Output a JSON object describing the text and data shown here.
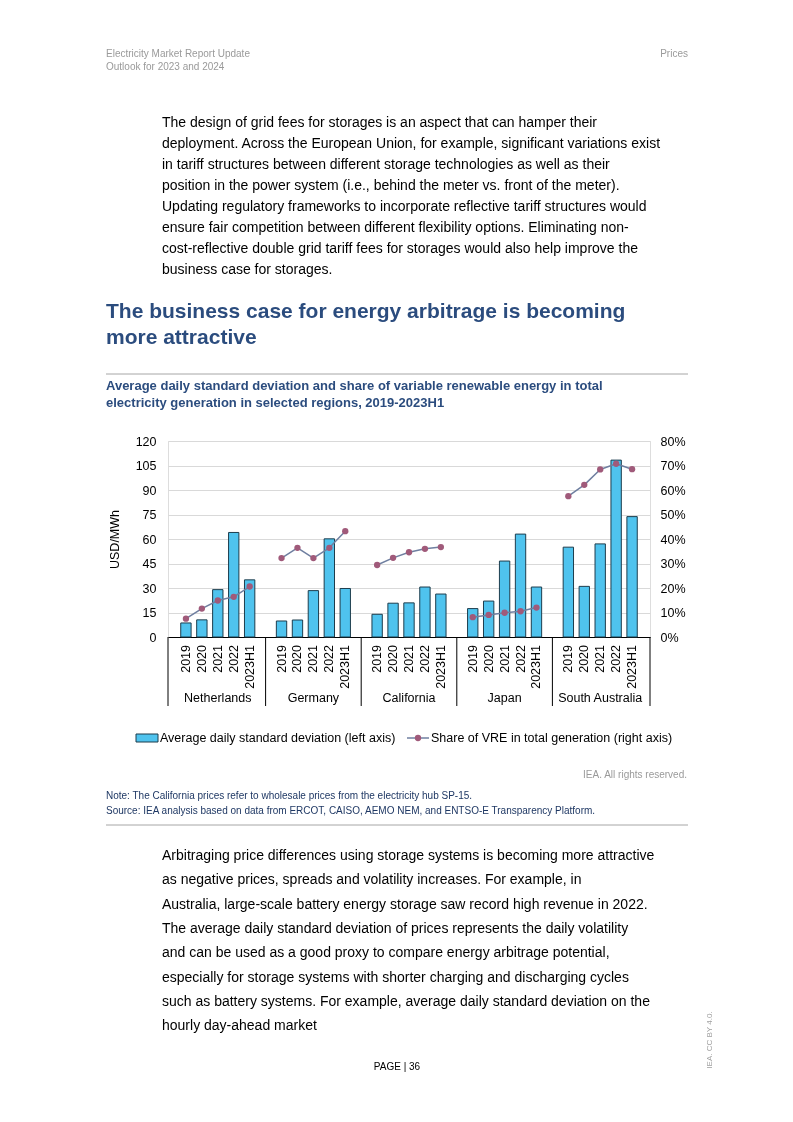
{
  "chart_data": {
    "type": "bar",
    "title": "Average daily standard deviation and share of variable renewable energy in total electricity generation in selected regions, 2019-2023H1",
    "ylabel": "USD/MWh",
    "categories": [
      "2019",
      "2020",
      "2021",
      "2022",
      "2023H1",
      null,
      "2019",
      "2020",
      "2021",
      "2022",
      "2023H1",
      null,
      "2019",
      "2020",
      "2021",
      "2022",
      "2023H1",
      null,
      "2019",
      "2020",
      "2021",
      "2022",
      "2023H1",
      null,
      "2019",
      "2020",
      "2021",
      "2022",
      "2023H1"
    ],
    "series": [
      {
        "name": "Average daily standard deviation (left axis)",
        "color": "#4fc3ee",
        "values": [
          8.6,
          10.5,
          29,
          64,
          35,
          null,
          9.8,
          10.4,
          28.4,
          60.1,
          29.7,
          null,
          13.9,
          20.7,
          20.9,
          30.6,
          26.3,
          null,
          17.4,
          22,
          46.5,
          63,
          30.6,
          null,
          55,
          31,
          57,
          108.3,
          73.7
        ]
      },
      {
        "name": "Share of VRE in total generation (right axis)",
        "type": "line",
        "axis": "y2",
        "marker": "circle",
        "color": "#a05a7a",
        "values": [
          7.5,
          11.6,
          14.9,
          16.4,
          20.6,
          null,
          32.2,
          36.4,
          32.2,
          36.4,
          43.2,
          null,
          29.4,
          32.3,
          34.6,
          36,
          36.7,
          null,
          8.1,
          9,
          9.9,
          10.5,
          12,
          null,
          57.5,
          62.1,
          68.4,
          70.7,
          68.5
        ]
      }
    ],
    "ylim": [
      0,
      120
    ],
    "yticks": [
      0,
      15,
      30,
      45,
      60,
      75,
      90,
      105,
      120
    ],
    "y2lim": [
      0,
      80
    ],
    "y2ticks": [
      {
        "value": 0,
        "label": "0%"
      },
      {
        "value": 10,
        "label": "10%"
      },
      {
        "value": 20,
        "label": "20%"
      },
      {
        "value": 30,
        "label": "30%"
      },
      {
        "value": 40,
        "label": "40%"
      },
      {
        "value": 50,
        "label": "50%"
      },
      {
        "value": 60,
        "label": "60%"
      },
      {
        "value": 70,
        "label": "70%"
      },
      {
        "value": 80,
        "label": "80%"
      }
    ],
    "grid": "y",
    "legend": "bottom",
    "annotations": [
      "Electricity Market Report Update",
      "Outlook for 2023 and 2024",
      "Prices",
      "The design of grid fees for storages is an aspect that can hamper their deployment. Across the European Union, for example, significant variations exist in tariff structures between different storage technologies as well as their position in the power system (i.e., behind the meter vs. front of the meter). Updating regulatory frameworks to incorporate reflective tariff structures would ensure fair competition between different flexibility options. Eliminating non-cost-reflective double grid tariff fees for storages would also help improve the business case for storages.",
      "The business case for energy arbitrage is becoming more attractive",
      "Netherlands",
      "Germany",
      "California",
      "Japan",
      "South Australia",
      "IEA. All rights reserved.",
      "Note: The California prices refer to wholesale prices from the electricity hub SP-15.",
      "Source: IEA analysis based on data from ERCOT, CAISO, AEMO NEM, and ENTSO-E Transparency Platform.",
      "Arbitraging price differences using storage systems is becoming more attractive as negative prices, spreads and volatility increases. For example, in Australia, large-scale battery energy storage saw record high revenue in 2022. The average daily standard deviation of prices represents the daily volatility and can be used as a good proxy to compare energy arbitrage potential, especially for storage systems with shorter charging and discharging cycles such as battery systems. For example, average daily standard deviation on the hourly day-ahead market",
      "PAGE | 36",
      "IEA. CC BY 4.0."
    ]
  }
}
